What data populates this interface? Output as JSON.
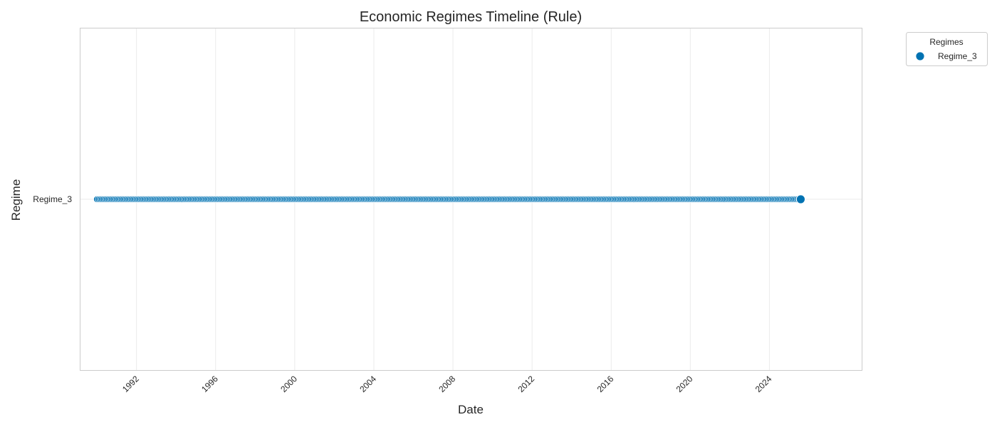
{
  "chart_data": {
    "type": "scatter",
    "title": "Economic Regimes Timeline (Rule)",
    "xlabel": "Date",
    "ylabel": "Regime",
    "x_start": "1990-01",
    "x_end": "2025-08",
    "x_frequency": "monthly",
    "xlim": [
      "1989-03",
      "2028-09"
    ],
    "x_ticks": [
      "1992",
      "1996",
      "2000",
      "2004",
      "2008",
      "2012",
      "2016",
      "2020",
      "2024"
    ],
    "y_categories": [
      "Regime_3"
    ],
    "series": [
      {
        "name": "Regime_3",
        "y": "Regime_3",
        "color": "#0072b2"
      }
    ],
    "highlight_last_point": true,
    "grid": true,
    "legend": {
      "title": "Regimes",
      "placement": "outside-top-right"
    }
  }
}
